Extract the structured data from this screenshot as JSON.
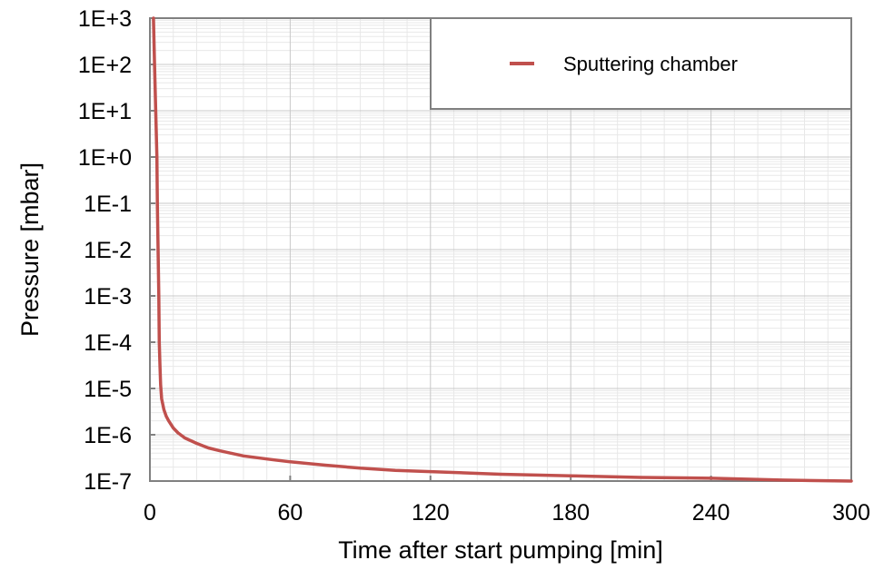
{
  "chart_data": {
    "type": "line",
    "xlabel": "Time after start pumping [min]",
    "ylabel": "Pressure [mbar]",
    "xlim": [
      0,
      300
    ],
    "ylim": [
      1e-07,
      1000
    ],
    "yscale": "log",
    "x_ticks": [
      0,
      60,
      120,
      180,
      240,
      300
    ],
    "x_tick_labels": [
      "0",
      "60",
      "120",
      "180",
      "240",
      "300"
    ],
    "y_ticks": [
      1000,
      100,
      10,
      1,
      0.1,
      0.01,
      0.001,
      0.0001,
      1e-05,
      1e-06,
      1e-07
    ],
    "y_tick_labels": [
      "1E+3",
      "1E+2",
      "1E+1",
      "1E+0",
      "1E-1",
      "1E-2",
      "1E-3",
      "1E-4",
      "1E-5",
      "1E-6",
      "1E-7"
    ],
    "grid": true,
    "legend_position": "top-right",
    "series": [
      {
        "name": "Sputtering chamber",
        "color": "#c0504d",
        "x": [
          1.5,
          2.0,
          2.5,
          3.0,
          3.2,
          3.5,
          3.8,
          4.0,
          4.3,
          4.6,
          5,
          6,
          7,
          8,
          10,
          12,
          15,
          20,
          25,
          30,
          40,
          50,
          60,
          75,
          90,
          105,
          120,
          150,
          180,
          210,
          240,
          270,
          300
        ],
        "y": [
          1000,
          100,
          10,
          1,
          0.1,
          0.01,
          0.001,
          0.0001,
          3e-05,
          1.2e-05,
          6e-06,
          3.5e-06,
          2.5e-06,
          2e-06,
          1.4e-06,
          1.1e-06,
          8.5e-07,
          6.5e-07,
          5.2e-07,
          4.5e-07,
          3.5e-07,
          3e-07,
          2.6e-07,
          2.2e-07,
          1.9e-07,
          1.7e-07,
          1.6e-07,
          1.4e-07,
          1.3e-07,
          1.2e-07,
          1.15e-07,
          1.05e-07,
          1e-07
        ]
      }
    ]
  }
}
